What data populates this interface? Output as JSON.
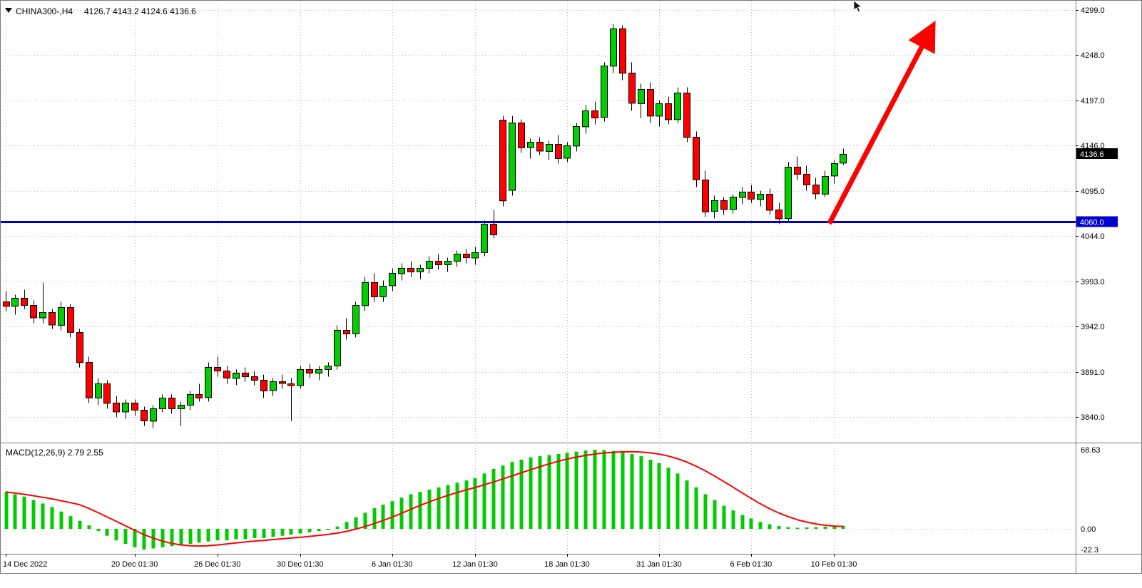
{
  "header": {
    "symbol": "CHINA300-,H4",
    "ohlc": "4126.7 4143.2 4124.6 4136.6"
  },
  "colors": {
    "background": "#FFFFFF",
    "grid": "#B6B6B6",
    "candle_up": "#00CE00",
    "candle_down": "#FF0000",
    "candle_outline": "#000000",
    "support_line": "#0000D0",
    "price_tag_bg": "#000000",
    "price_tag_text": "#FFFFFF",
    "arrow": "#FF0000",
    "macd_bar": "#00CC00",
    "macd_signal": "#FF0000",
    "separator": "#787878"
  },
  "chart_data": {
    "type": "candlestick",
    "symbol": "CHINA300-",
    "timeframe": "H4",
    "title": "CHINA300-,H4 4126.7 4143.2 4124.6 4136.6",
    "ohlc_display": {
      "open": "4126.7",
      "high": "4143.2",
      "low": "4124.6",
      "close": "4136.6"
    },
    "price_axis": {
      "labels": [
        "4299.0",
        "4248.0",
        "4197.0",
        "4146.0",
        "4095.0",
        "4044.0",
        "3993.0",
        "3942.0",
        "3891.0",
        "3840.0"
      ]
    },
    "time_axis": {
      "ticks": [
        {
          "label": "14 Dec 2022",
          "candle_index": 0
        },
        {
          "label": "20 Dec 01:30",
          "candle_index": 14
        },
        {
          "label": "26 Dec 01:30",
          "candle_index": 23
        },
        {
          "label": "30 Dec 01:30",
          "candle_index": 32
        },
        {
          "label": "6 Jan 01:30",
          "candle_index": 42
        },
        {
          "label": "12 Jan 01:30",
          "candle_index": 51
        },
        {
          "label": "18 Jan 01:30",
          "candle_index": 61
        },
        {
          "label": "31 Jan 01:30",
          "candle_index": 71
        },
        {
          "label": "6 Feb 01:30",
          "candle_index": 81
        },
        {
          "label": "10 Feb 01:30",
          "candle_index": 90
        }
      ]
    },
    "candles": [
      [
        3970,
        3982,
        3960,
        3965
      ],
      [
        3965,
        3978,
        3956,
        3974
      ],
      [
        3974,
        3984,
        3962,
        3966
      ],
      [
        3966,
        3972,
        3946,
        3952
      ],
      [
        3952,
        3992,
        3946,
        3958
      ],
      [
        3958,
        3962,
        3940,
        3944
      ],
      [
        3944,
        3970,
        3938,
        3964
      ],
      [
        3964,
        3968,
        3930,
        3936
      ],
      [
        3936,
        3940,
        3896,
        3902
      ],
      [
        3902,
        3908,
        3856,
        3862
      ],
      [
        3862,
        3884,
        3854,
        3878
      ],
      [
        3878,
        3882,
        3850,
        3856
      ],
      [
        3856,
        3864,
        3840,
        3846
      ],
      [
        3846,
        3860,
        3838,
        3856
      ],
      [
        3856,
        3860,
        3842,
        3848
      ],
      [
        3848,
        3852,
        3830,
        3836
      ],
      [
        3836,
        3854,
        3828,
        3850
      ],
      [
        3850,
        3866,
        3846,
        3862
      ],
      [
        3862,
        3866,
        3844,
        3850
      ],
      [
        3850,
        3858,
        3830,
        3854
      ],
      [
        3854,
        3870,
        3848,
        3866
      ],
      [
        3866,
        3878,
        3858,
        3862
      ],
      [
        3862,
        3902,
        3858,
        3896
      ],
      [
        3896,
        3908,
        3886,
        3892
      ],
      [
        3892,
        3898,
        3878,
        3884
      ],
      [
        3884,
        3894,
        3876,
        3890
      ],
      [
        3890,
        3896,
        3880,
        3886
      ],
      [
        3886,
        3892,
        3876,
        3882
      ],
      [
        3882,
        3888,
        3862,
        3870
      ],
      [
        3870,
        3884,
        3864,
        3880
      ],
      [
        3880,
        3888,
        3872,
        3878
      ],
      [
        3878,
        3884,
        3836,
        3876
      ],
      [
        3876,
        3898,
        3872,
        3894
      ],
      [
        3894,
        3900,
        3884,
        3890
      ],
      [
        3890,
        3898,
        3882,
        3894
      ],
      [
        3894,
        3902,
        3886,
        3898
      ],
      [
        3898,
        3944,
        3894,
        3938
      ],
      [
        3938,
        3952,
        3928,
        3934
      ],
      [
        3934,
        3970,
        3930,
        3966
      ],
      [
        3966,
        3998,
        3960,
        3992
      ],
      [
        3992,
        4002,
        3970,
        3976
      ],
      [
        3976,
        3994,
        3970,
        3988
      ],
      [
        3988,
        4008,
        3982,
        4002
      ],
      [
        4002,
        4014,
        3994,
        4008
      ],
      [
        4008,
        4016,
        3998,
        4004
      ],
      [
        4004,
        4012,
        3996,
        4008
      ],
      [
        4008,
        4022,
        4002,
        4016
      ],
      [
        4016,
        4024,
        4006,
        4012
      ],
      [
        4012,
        4020,
        4004,
        4016
      ],
      [
        4016,
        4028,
        4010,
        4024
      ],
      [
        4024,
        4030,
        4014,
        4020
      ],
      [
        4020,
        4032,
        4012,
        4026
      ],
      [
        4026,
        4062,
        4022,
        4058
      ],
      [
        4058,
        4074,
        4042,
        4046
      ],
      [
        4175,
        4180,
        4078,
        4084
      ],
      [
        4096,
        4180,
        4090,
        4172
      ],
      [
        4172,
        4176,
        4138,
        4144
      ],
      [
        4144,
        4154,
        4132,
        4150
      ],
      [
        4150,
        4156,
        4136,
        4140
      ],
      [
        4140,
        4152,
        4130,
        4148
      ],
      [
        4148,
        4158,
        4126,
        4132
      ],
      [
        4132,
        4150,
        4128,
        4146
      ],
      [
        4146,
        4172,
        4140,
        4168
      ],
      [
        4168,
        4192,
        4160,
        4186
      ],
      [
        4186,
        4196,
        4170,
        4178
      ],
      [
        4178,
        4240,
        4174,
        4236
      ],
      [
        4236,
        4284,
        4228,
        4278
      ],
      [
        4278,
        4282,
        4220,
        4228
      ],
      [
        4228,
        4240,
        4186,
        4194
      ],
      [
        4194,
        4216,
        4178,
        4210
      ],
      [
        4210,
        4218,
        4172,
        4180
      ],
      [
        4180,
        4198,
        4168,
        4194
      ],
      [
        4194,
        4202,
        4170,
        4176
      ],
      [
        4176,
        4212,
        4172,
        4206
      ],
      [
        4206,
        4212,
        4150,
        4156
      ],
      [
        4156,
        4162,
        4100,
        4108
      ],
      [
        4108,
        4118,
        4066,
        4072
      ],
      [
        4072,
        4090,
        4064,
        4084
      ],
      [
        4084,
        4088,
        4068,
        4074
      ],
      [
        4074,
        4092,
        4070,
        4088
      ],
      [
        4088,
        4100,
        4080,
        4094
      ],
      [
        4094,
        4102,
        4082,
        4086
      ],
      [
        4086,
        4096,
        4078,
        4092
      ],
      [
        4092,
        4098,
        4068,
        4074
      ],
      [
        4074,
        4082,
        4058,
        4064
      ],
      [
        4064,
        4128,
        4060,
        4122
      ],
      [
        4122,
        4134,
        4108,
        4114
      ],
      [
        4114,
        4124,
        4096,
        4102
      ],
      [
        4102,
        4110,
        4086,
        4092
      ],
      [
        4092,
        4118,
        4088,
        4112
      ],
      [
        4112,
        4130,
        4104,
        4126
      ],
      [
        4126.7,
        4143.2,
        4124.6,
        4136.6
      ]
    ],
    "horizontal_line": {
      "price": 4060.0,
      "label": "4060.0"
    },
    "current_price": {
      "value": 4136.6,
      "label": "4136.6"
    },
    "trend_arrow": {
      "from": {
        "candle_index": 89.5,
        "price": 4058
      },
      "to": {
        "candle_index": 100.8,
        "price": 4282
      }
    },
    "macd": {
      "label_full": "MACD(12,26,9) 2.79 2.55",
      "name": "MACD(12,26,9)",
      "macd_value": "2.79",
      "signal_value": "2.55",
      "axis_labels": [
        "68.63",
        "0.00",
        "-22.3"
      ],
      "histogram": [
        32,
        30,
        28,
        25,
        22,
        19,
        15,
        11,
        7,
        3,
        -2,
        -6,
        -10,
        -13,
        -16,
        -18,
        -17,
        -16,
        -15,
        -14,
        -13,
        -12,
        -11,
        -10,
        -10,
        -9,
        -9,
        -8,
        -8,
        -7,
        -6,
        -5,
        -4,
        -3,
        -2,
        -1,
        2,
        6,
        10,
        14,
        18,
        21,
        24,
        27,
        30,
        32,
        34,
        36,
        38,
        40,
        42,
        44,
        48,
        52,
        55,
        58,
        60,
        62,
        63,
        64,
        65,
        66,
        67,
        68,
        68.6,
        68.3,
        67.5,
        66.5,
        65,
        63,
        60,
        57,
        53,
        48,
        42,
        36,
        30,
        25,
        20,
        16,
        12,
        9,
        6,
        4,
        2.5,
        1.5,
        1.0,
        1.2,
        1.5,
        1.9,
        2.3,
        2.79
      ]
    }
  }
}
